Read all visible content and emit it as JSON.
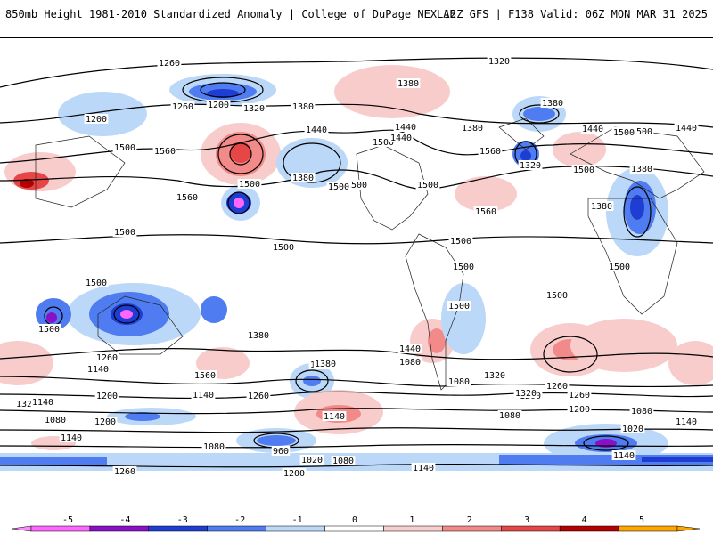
{
  "header": {
    "left_title": "850mb Height 1981-2010 Standardized Anomaly | College of DuPage NEXLAB",
    "right_title": "12Z GFS | F138 Valid: 06Z MON MAR 31 2025"
  },
  "colors": {
    "neg5": "#ff66ff",
    "neg4": "#8a10c8",
    "neg3": "#1e3dd2",
    "neg2": "#4f7cf0",
    "neg1": "#bcd8f8",
    "zero": "#ffffff",
    "pos1": "#f9cccc",
    "pos2": "#f28a8a",
    "pos3": "#e64646",
    "pos4": "#b40000",
    "pos5": "#ffa500"
  },
  "map": {
    "contour_labels": [
      {
        "text": "1260"
      },
      {
        "text": "1320"
      },
      {
        "text": "1200"
      },
      {
        "text": "1260"
      },
      {
        "text": "1200"
      },
      {
        "text": "1320"
      },
      {
        "text": "1380"
      },
      {
        "text": "1380"
      },
      {
        "text": "1380"
      },
      {
        "text": "1440"
      },
      {
        "text": "1440"
      },
      {
        "text": "1440"
      },
      {
        "text": "1500"
      },
      {
        "text": "1560"
      },
      {
        "text": "1500"
      },
      {
        "text": "1380"
      },
      {
        "text": "1500"
      },
      {
        "text": "1560"
      },
      {
        "text": "1500"
      },
      {
        "text": "1320"
      },
      {
        "text": "1380"
      },
      {
        "text": "1440"
      },
      {
        "text": "1500"
      },
      {
        "text": "1500"
      },
      {
        "text": "1560"
      },
      {
        "text": "1500"
      },
      {
        "text": "1500"
      },
      {
        "text": "1500"
      },
      {
        "text": "1500"
      },
      {
        "text": "1380"
      },
      {
        "text": "1500"
      },
      {
        "text": "1500"
      },
      {
        "text": "1500"
      },
      {
        "text": "1500"
      },
      {
        "text": "1500"
      },
      {
        "text": "1500"
      },
      {
        "text": "1500"
      },
      {
        "text": "1440"
      },
      {
        "text": "1560"
      },
      {
        "text": "1560"
      },
      {
        "text": "1500"
      },
      {
        "text": "1380"
      },
      {
        "text": "1380"
      },
      {
        "text": "1320"
      },
      {
        "text": "1320"
      },
      {
        "text": "1440"
      },
      {
        "text": "1260"
      },
      {
        "text": "1140"
      },
      {
        "text": "1200"
      },
      {
        "text": "1260"
      },
      {
        "text": "1260"
      },
      {
        "text": "1320"
      },
      {
        "text": "1140"
      },
      {
        "text": "1200"
      },
      {
        "text": "1080"
      },
      {
        "text": "1140"
      },
      {
        "text": "1260"
      },
      {
        "text": "1080"
      },
      {
        "text": "1080"
      },
      {
        "text": "1140"
      },
      {
        "text": "1200"
      },
      {
        "text": "1080"
      },
      {
        "text": "1200"
      },
      {
        "text": "1140"
      },
      {
        "text": "1320"
      },
      {
        "text": "1380"
      },
      {
        "text": "1080"
      },
      {
        "text": "960"
      },
      {
        "text": "1020"
      },
      {
        "text": "1080"
      },
      {
        "text": "1140"
      },
      {
        "text": "1260"
      },
      {
        "text": "1200"
      },
      {
        "text": "1140"
      },
      {
        "text": "1020"
      },
      {
        "text": "1080"
      },
      {
        "text": "1140"
      }
    ]
  },
  "colorbar": {
    "ticks": [
      "-5",
      "-4",
      "-3",
      "-2",
      "-1",
      "0",
      "1",
      "2",
      "3",
      "4",
      "5"
    ]
  }
}
